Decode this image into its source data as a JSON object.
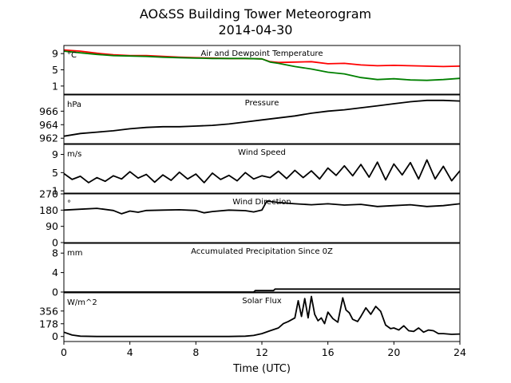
{
  "figure": {
    "title": "AO&SS Building Tower Meteorogram",
    "date": "2014-04-30",
    "xlabel": "Time (UTC)"
  },
  "chart_data": [
    {
      "type": "line",
      "panel": "temperature",
      "title": "Air and Dewpoint Temperature",
      "unit_label": "°C",
      "ylim": [
        -1,
        11
      ],
      "yticks": [
        1,
        5,
        9
      ],
      "xlim": [
        0,
        24
      ],
      "xticks": [
        0,
        4,
        8,
        12,
        16,
        20,
        24
      ],
      "series": [
        {
          "color": "#ff0000",
          "x": [
            0,
            1,
            2,
            3,
            4,
            5,
            6,
            7,
            8,
            9,
            10,
            11,
            12,
            12.5,
            13,
            14,
            15,
            16,
            17,
            18,
            19,
            20,
            21,
            22,
            23,
            24
          ],
          "y": [
            9.9,
            9.6,
            9.1,
            8.7,
            8.5,
            8.5,
            8.3,
            8.1,
            8.0,
            7.9,
            7.8,
            7.8,
            7.7,
            7.0,
            6.8,
            6.9,
            7.0,
            6.5,
            6.6,
            6.2,
            6.0,
            6.1,
            6.0,
            5.9,
            5.8,
            5.9
          ]
        },
        {
          "color": "#008000",
          "x": [
            0,
            1,
            2,
            3,
            4,
            5,
            6,
            7,
            8,
            9,
            10,
            11,
            12,
            12.5,
            13,
            14,
            15,
            16,
            17,
            18,
            19,
            20,
            21,
            22,
            23,
            24
          ],
          "y": [
            9.6,
            9.2,
            8.8,
            8.5,
            8.4,
            8.3,
            8.1,
            8.0,
            7.9,
            7.8,
            7.8,
            7.8,
            7.7,
            6.9,
            6.6,
            5.8,
            5.2,
            4.4,
            4.0,
            3.1,
            2.6,
            2.8,
            2.5,
            2.4,
            2.6,
            2.9
          ]
        }
      ]
    },
    {
      "type": "line",
      "panel": "pressure",
      "title": "Pressure",
      "unit_label": "hPa",
      "ylim": [
        961.2,
        968.4
      ],
      "yticks": [
        962,
        964,
        966
      ],
      "xlim": [
        0,
        24
      ],
      "series": [
        {
          "color": "#000000",
          "x": [
            0,
            1,
            2,
            3,
            4,
            5,
            6,
            7,
            8,
            9,
            10,
            11,
            12,
            13,
            14,
            15,
            16,
            17,
            18,
            19,
            20,
            21,
            22,
            23,
            24
          ],
          "y": [
            962.3,
            962.7,
            962.9,
            963.1,
            963.4,
            963.6,
            963.7,
            963.7,
            963.8,
            963.9,
            964.1,
            964.4,
            964.7,
            965.0,
            965.3,
            965.7,
            966.0,
            966.2,
            966.5,
            966.8,
            967.1,
            967.4,
            967.6,
            967.6,
            967.5
          ]
        }
      ]
    },
    {
      "type": "line",
      "panel": "wind_speed",
      "title": "Wind Speed",
      "unit_label": "m/s",
      "ylim": [
        0.5,
        11.2
      ],
      "yticks": [
        1,
        5,
        9
      ],
      "xlim": [
        0,
        24
      ],
      "series": [
        {
          "color": "#000000",
          "x": [
            0,
            0.5,
            1,
            1.5,
            2,
            2.5,
            3,
            3.5,
            4,
            4.5,
            5,
            5.5,
            6,
            6.5,
            7,
            7.5,
            8,
            8.5,
            9,
            9.5,
            10,
            10.5,
            11,
            11.5,
            12,
            12.5,
            13,
            13.5,
            14,
            14.5,
            15,
            15.5,
            16,
            16.5,
            17,
            17.5,
            18,
            18.5,
            19,
            19.5,
            20,
            20.5,
            21,
            21.5,
            22,
            22.5,
            23,
            23.5,
            24
          ],
          "y": [
            4.8,
            3.5,
            4.2,
            2.8,
            3.9,
            3.1,
            4.3,
            3.6,
            5.2,
            3.8,
            4.6,
            2.9,
            4.5,
            3.3,
            5.1,
            3.6,
            4.7,
            2.8,
            4.9,
            3.5,
            4.4,
            3.2,
            5.0,
            3.6,
            4.3,
            3.9,
            5.3,
            3.7,
            5.5,
            3.9,
            5.4,
            3.6,
            6.0,
            4.4,
            6.5,
            4.3,
            6.8,
            4.0,
            7.3,
            3.4,
            6.9,
            4.5,
            7.2,
            3.6,
            7.8,
            3.6,
            6.4,
            3.2,
            5.4
          ]
        }
      ]
    },
    {
      "type": "line",
      "panel": "wind_direction",
      "title": "Wind Direction",
      "unit_label": "°",
      "ylim": [
        0,
        270
      ],
      "yticks": [
        0,
        90,
        180,
        270
      ],
      "xlim": [
        0,
        24
      ],
      "series": [
        {
          "color": "#000000",
          "x": [
            0,
            1,
            2,
            3,
            3.5,
            4,
            4.5,
            5,
            6,
            7,
            8,
            8.5,
            9,
            10,
            11,
            11.5,
            12,
            12.3,
            13,
            14,
            15,
            16,
            17,
            18,
            19,
            20,
            21,
            22,
            23,
            24
          ],
          "y": [
            180,
            185,
            190,
            178,
            160,
            175,
            168,
            178,
            180,
            182,
            178,
            165,
            172,
            180,
            177,
            170,
            180,
            230,
            222,
            215,
            210,
            215,
            208,
            212,
            200,
            205,
            210,
            200,
            205,
            215
          ]
        }
      ]
    },
    {
      "type": "line",
      "panel": "precipitation",
      "title": "Accumulated Precipitation Since 0Z",
      "unit_label": "mm",
      "ylim": [
        0,
        10
      ],
      "yticks": [
        0,
        4,
        8
      ],
      "xlim": [
        0,
        24
      ],
      "series": [
        {
          "color": "#000000",
          "x": [
            0,
            11.5,
            11.6,
            12.7,
            12.8,
            24
          ],
          "y": [
            0,
            0,
            0.3,
            0.3,
            0.6,
            0.6
          ]
        }
      ]
    },
    {
      "type": "line",
      "panel": "solar_flux",
      "title": "Solar Flux",
      "unit_label": "W/m^2",
      "ylim": [
        -70,
        610
      ],
      "yticks": [
        0,
        178,
        356
      ],
      "xlim": [
        0,
        24
      ],
      "series": [
        {
          "color": "#000000",
          "x": [
            0,
            0.5,
            1,
            2,
            4,
            6,
            8,
            10,
            11,
            11.5,
            12,
            12.5,
            13,
            13.3,
            13.6,
            14,
            14.2,
            14.4,
            14.6,
            14.8,
            15,
            15.2,
            15.4,
            15.6,
            15.8,
            16,
            16.3,
            16.6,
            16.9,
            17.1,
            17.3,
            17.5,
            17.8,
            18,
            18.3,
            18.6,
            18.9,
            19.2,
            19.5,
            19.8,
            20,
            20.3,
            20.6,
            20.9,
            21.2,
            21.5,
            21.8,
            22.1,
            22.4,
            22.7,
            23,
            23.5,
            24
          ],
          "y": [
            60,
            20,
            5,
            0,
            0,
            0,
            0,
            0,
            5,
            15,
            40,
            80,
            120,
            180,
            210,
            260,
            500,
            280,
            530,
            260,
            560,
            310,
            220,
            260,
            180,
            340,
            250,
            200,
            540,
            370,
            330,
            240,
            210,
            280,
            400,
            310,
            420,
            350,
            160,
            110,
            120,
            90,
            150,
            80,
            70,
            120,
            60,
            90,
            80,
            40,
            40,
            30,
            35
          ]
        }
      ]
    }
  ]
}
